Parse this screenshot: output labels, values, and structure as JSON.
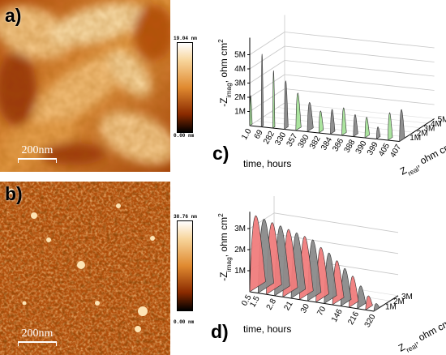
{
  "panels": {
    "a": {
      "letter": "a)",
      "scale_bar": "200nm",
      "colorbar_max": "19.04 nm",
      "colorbar_min": "0.00 nm"
    },
    "b": {
      "letter": "b)",
      "scale_bar": "200nm",
      "colorbar_max": "38.76 nm",
      "colorbar_min": "0.00 nm"
    },
    "c": {
      "letter": "c)"
    },
    "d": {
      "letter": "d)"
    }
  },
  "colors": {
    "green_fill": "#a6e39a",
    "red_fill": "#f07c7c",
    "gray_fill": "#8a8a8a",
    "afm_light": "#f7d49a",
    "afm_mid": "#d0701a",
    "afm_dark": "#5a1400"
  },
  "chart_data": [
    {
      "id": "c",
      "type": "area",
      "ylabel_main": "-Z",
      "ylabel_sub": "imag",
      "ylabel_rest": ", ohm cm",
      "ylabel_sup": "2",
      "xlabel": "time, hours",
      "zlabel_main": "Z",
      "zlabel_sub": "real",
      "zlabel_rest": ", ohm cm",
      "zlabel_sup": "2",
      "y_ticks": [
        "1M",
        "2M",
        "3M",
        "4M",
        "5M"
      ],
      "z_ticks": [
        "1M",
        "2M",
        "3M",
        "4M",
        "5M"
      ],
      "x_ticks": [
        "1.0",
        "69",
        "282",
        "330",
        "357",
        "380",
        "382",
        "384",
        "386",
        "388",
        "390",
        "399",
        "405",
        "407"
      ],
      "series": [
        {
          "time": "1.0",
          "peak": 2.1,
          "width": 0.2
        },
        {
          "time": "69",
          "peak": 5.2,
          "width": 0.15
        },
        {
          "time": "282",
          "peak": 4.1,
          "width": 0.15
        },
        {
          "time": "330",
          "peak": 3.4,
          "width": 0.4
        },
        {
          "time": "357",
          "peak": 2.6,
          "width": 0.6
        },
        {
          "time": "380",
          "peak": 2.0,
          "width": 0.7
        },
        {
          "time": "382",
          "peak": 1.5,
          "width": 0.5
        },
        {
          "time": "384",
          "peak": 1.7,
          "width": 0.5
        },
        {
          "time": "386",
          "peak": 1.9,
          "width": 0.5
        },
        {
          "time": "388",
          "peak": 1.5,
          "width": 0.5
        },
        {
          "time": "390",
          "peak": 1.4,
          "width": 0.5
        },
        {
          "time": "399",
          "peak": 0.8,
          "width": 0.4
        },
        {
          "time": "405",
          "peak": 1.9,
          "width": 0.5
        },
        {
          "time": "407",
          "peak": 2.2,
          "width": 0.6
        }
      ]
    },
    {
      "id": "d",
      "type": "area",
      "ylabel_main": "-Z",
      "ylabel_sub": "imag",
      "ylabel_rest": ", ohm cm",
      "ylabel_sup": "2",
      "xlabel": "time, hours",
      "zlabel_main": "Z",
      "zlabel_sub": "real",
      "zlabel_rest": ", ohm cm",
      "zlabel_sup": "2",
      "y_ticks": [
        "1M",
        "2M",
        "3M"
      ],
      "z_ticks": [
        "1M",
        "2M",
        "3M"
      ],
      "x_ticks": [
        "0.5",
        "1.5",
        "2.8",
        "21",
        "30",
        "70",
        "146",
        "216",
        "320"
      ],
      "series": [
        {
          "time": "0.5",
          "peak": 3.5,
          "width": 3.0
        },
        {
          "time": "1.5",
          "peak": 3.4,
          "width": 3.0
        },
        {
          "time": "",
          "peak": 3.3,
          "width": 2.9
        },
        {
          "time": "2.8",
          "peak": 3.2,
          "width": 2.9
        },
        {
          "time": "",
          "peak": 3.1,
          "width": 2.8
        },
        {
          "time": "21",
          "peak": 3.0,
          "width": 2.7
        },
        {
          "time": "",
          "peak": 2.9,
          "width": 2.6
        },
        {
          "time": "30",
          "peak": 2.8,
          "width": 2.5
        },
        {
          "time": "",
          "peak": 2.5,
          "width": 2.4
        },
        {
          "time": "70",
          "peak": 2.3,
          "width": 2.3
        },
        {
          "time": "",
          "peak": 2.0,
          "width": 2.1
        },
        {
          "time": "146",
          "peak": 1.7,
          "width": 1.9
        },
        {
          "time": "",
          "peak": 1.4,
          "width": 1.7
        },
        {
          "time": "216",
          "peak": 1.0,
          "width": 1.5
        },
        {
          "time": "",
          "peak": 0.6,
          "width": 1.2
        },
        {
          "time": "320",
          "peak": 0.3,
          "width": 0.9
        }
      ]
    }
  ]
}
